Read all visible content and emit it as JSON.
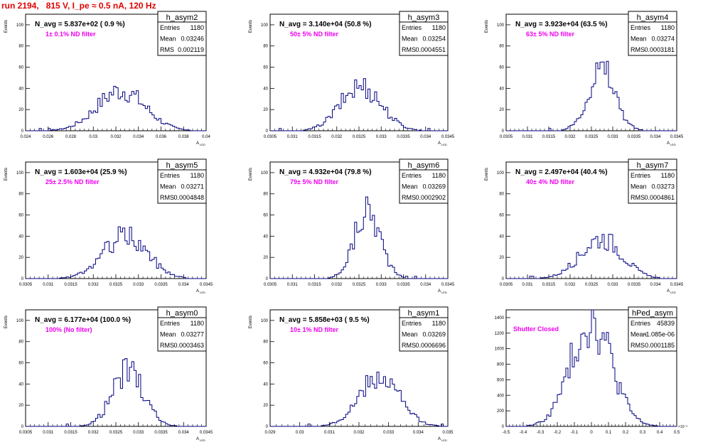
{
  "header": {
    "run_title": "run 2194,   815 V, I_pe ≈ 0.5 nA, 120 Hz"
  },
  "chart_data": [
    {
      "type": "bar",
      "name": "h_asym2",
      "nAvg": "N_avg = 5.837e+02 ( 0.9 %)",
      "filter": "1± 0.1% ND filter",
      "stats": [
        [
          "Entries",
          "1180"
        ],
        [
          "Mean",
          "0.03246"
        ],
        [
          "RMS",
          "0.002119"
        ]
      ],
      "xlabel": "A",
      "xlabel_sub": "LED",
      "ylabel": "Events",
      "xlim": [
        0.024,
        0.04
      ],
      "ylim": [
        0,
        110
      ],
      "xticks": [
        0.024,
        0.026,
        0.028,
        0.03,
        0.032,
        0.034,
        0.036,
        0.038,
        0.04
      ],
      "xtick_labels": [
        "0.024",
        "0.026",
        "0.028",
        "0.03",
        "0.032",
        "0.034",
        "0.036",
        "0.038",
        "0.04"
      ],
      "yticks": [
        0,
        20,
        40,
        60,
        80,
        100
      ],
      "ytick_labels": [
        "0",
        "20",
        "40",
        "60",
        "80",
        "100"
      ],
      "mean": 0.03246,
      "rms": 0.002119,
      "peak": 38
    },
    {
      "type": "bar",
      "name": "h_asym3",
      "nAvg": "N_avg = 3.140e+04 (50.8 %)",
      "filter": "50± 5% ND filter",
      "stats": [
        [
          "Entries",
          "1180"
        ],
        [
          "Mean",
          "0.03254"
        ],
        [
          "RMS",
          "0.0004551"
        ]
      ],
      "xlabel": "A",
      "xlabel_sub": "LED",
      "ylabel": "Events",
      "xlim": [
        0.0305,
        0.0345
      ],
      "ylim": [
        0,
        110
      ],
      "xticks": [
        0.0305,
        0.031,
        0.0315,
        0.032,
        0.0325,
        0.033,
        0.0335,
        0.034,
        0.0345
      ],
      "xtick_labels": [
        "0.0305",
        "0.031",
        "0.0315",
        "0.032",
        "0.0325",
        "0.033",
        "0.0335",
        "0.034",
        "0.0345"
      ],
      "yticks": [
        0,
        20,
        40,
        60,
        80,
        100
      ],
      "ytick_labels": [
        "0",
        "20",
        "40",
        "60",
        "80",
        "100"
      ],
      "mean": 0.03254,
      "rms": 0.0004551,
      "peak": 42
    },
    {
      "type": "bar",
      "name": "h_asym4",
      "nAvg": "N_avg = 3.923e+04 (63.5 %)",
      "filter": "63± 5% ND filter",
      "stats": [
        [
          "Entries",
          "1180"
        ],
        [
          "Mean",
          "0.03274"
        ],
        [
          "RMS",
          "0.0003181"
        ]
      ],
      "xlabel": "A",
      "xlabel_sub": "LED",
      "ylabel": "Events",
      "xlim": [
        0.0305,
        0.0345
      ],
      "ylim": [
        0,
        110
      ],
      "xticks": [
        0.0305,
        0.031,
        0.0315,
        0.032,
        0.0325,
        0.033,
        0.0335,
        0.034,
        0.0345
      ],
      "xtick_labels": [
        "0.0305",
        "0.031",
        "0.0315",
        "0.032",
        "0.0325",
        "0.033",
        "0.0335",
        "0.034",
        "0.0345"
      ],
      "yticks": [
        0,
        20,
        40,
        60,
        80,
        100
      ],
      "ytick_labels": [
        "0",
        "20",
        "40",
        "60",
        "80",
        "100"
      ],
      "mean": 0.03274,
      "rms": 0.0003181,
      "peak": 58
    },
    {
      "type": "bar",
      "name": "h_asym5",
      "nAvg": "N_avg = 1.603e+04 (25.9 %)",
      "filter": "25± 2.5% ND filter",
      "stats": [
        [
          "Entries",
          "1180"
        ],
        [
          "Mean",
          "0.03271"
        ],
        [
          "RMS",
          "0.0004848"
        ]
      ],
      "xlabel": "A",
      "xlabel_sub": "LED",
      "ylabel": "Events",
      "xlim": [
        0.0305,
        0.0345
      ],
      "ylim": [
        0,
        110
      ],
      "xticks": [
        0.0305,
        0.031,
        0.0315,
        0.032,
        0.0325,
        0.033,
        0.0335,
        0.034,
        0.0345
      ],
      "xtick_labels": [
        "0.0305",
        "0.031",
        "0.0315",
        "0.032",
        "0.0325",
        "0.033",
        "0.0335",
        "0.034",
        "0.0345"
      ],
      "yticks": [
        0,
        20,
        40,
        60,
        80,
        100
      ],
      "ytick_labels": [
        "0",
        "20",
        "40",
        "60",
        "80",
        "100"
      ],
      "mean": 0.03271,
      "rms": 0.0004848,
      "peak": 40
    },
    {
      "type": "bar",
      "name": "h_asym6",
      "nAvg": "N_avg = 4.932e+04 (79.8 %)",
      "filter": "79± 5% ND filter",
      "stats": [
        [
          "Entries",
          "1180"
        ],
        [
          "Mean",
          "0.03269"
        ],
        [
          "RMS",
          "0.0002902"
        ]
      ],
      "xlabel": "A",
      "xlabel_sub": "LED",
      "ylabel": "Events",
      "xlim": [
        0.0305,
        0.0345
      ],
      "ylim": [
        0,
        110
      ],
      "xticks": [
        0.0305,
        0.031,
        0.0315,
        0.032,
        0.0325,
        0.033,
        0.0335,
        0.034,
        0.0345
      ],
      "xtick_labels": [
        "0.0305",
        "0.031",
        "0.0315",
        "0.032",
        "0.0325",
        "0.033",
        "0.0335",
        "0.034",
        "0.0345"
      ],
      "yticks": [
        0,
        20,
        40,
        60,
        80,
        100
      ],
      "ytick_labels": [
        "0",
        "20",
        "40",
        "60",
        "80",
        "100"
      ],
      "mean": 0.03269,
      "rms": 0.0002902,
      "peak": 64
    },
    {
      "type": "bar",
      "name": "h_asym7",
      "nAvg": "N_avg = 2.497e+04 (40.4 %)",
      "filter": "40± 4% ND filter",
      "stats": [
        [
          "Entries",
          "1180"
        ],
        [
          "Mean",
          "0.03273"
        ],
        [
          "RMS",
          "0.0004861"
        ]
      ],
      "xlabel": "A",
      "xlabel_sub": "LED",
      "ylabel": "Events",
      "xlim": [
        0.0305,
        0.0345
      ],
      "ylim": [
        0,
        110
      ],
      "xticks": [
        0.0305,
        0.031,
        0.0315,
        0.032,
        0.0325,
        0.033,
        0.0335,
        0.034,
        0.0345
      ],
      "xtick_labels": [
        "0.0305",
        "0.031",
        "0.0315",
        "0.032",
        "0.0325",
        "0.033",
        "0.0335",
        "0.034",
        "0.0345"
      ],
      "yticks": [
        0,
        20,
        40,
        60,
        80,
        100
      ],
      "ytick_labels": [
        "0",
        "20",
        "40",
        "60",
        "80",
        "100"
      ],
      "mean": 0.03273,
      "rms": 0.0004861,
      "peak": 38
    },
    {
      "type": "bar",
      "name": "h_asym0",
      "nAvg": "N_avg = 6.177e+04 (100.0 %)",
      "filter": "100% (No filter)",
      "stats": [
        [
          "Entries",
          "1180"
        ],
        [
          "Mean",
          "0.03277"
        ],
        [
          "RMS",
          "0.0003463"
        ]
      ],
      "xlabel": "A",
      "xlabel_sub": "LED",
      "ylabel": "Events",
      "xlim": [
        0.0305,
        0.0345
      ],
      "ylim": [
        0,
        110
      ],
      "xticks": [
        0.0305,
        0.031,
        0.0315,
        0.032,
        0.0325,
        0.033,
        0.0335,
        0.034,
        0.0345
      ],
      "xtick_labels": [
        "0.0305",
        "0.031",
        "0.0315",
        "0.032",
        "0.0325",
        "0.033",
        "0.0335",
        "0.034",
        "0.0345"
      ],
      "yticks": [
        0,
        20,
        40,
        60,
        80,
        100
      ],
      "ytick_labels": [
        "0",
        "20",
        "40",
        "60",
        "80",
        "100"
      ],
      "mean": 0.03277,
      "rms": 0.0003463,
      "peak": 52
    },
    {
      "type": "bar",
      "name": "h_asym1",
      "nAvg": "N_avg = 5.858e+03 ( 9.5 %)",
      "filter": "10± 1% ND filter",
      "stats": [
        [
          "Entries",
          "1180"
        ],
        [
          "Mean",
          "0.03269"
        ],
        [
          "RMS",
          "0.0006696"
        ]
      ],
      "xlabel": "A",
      "xlabel_sub": "LED",
      "ylabel": "Events",
      "xlim": [
        0.029,
        0.035
      ],
      "ylim": [
        0,
        110
      ],
      "xticks": [
        0.029,
        0.03,
        0.031,
        0.032,
        0.033,
        0.034,
        0.035
      ],
      "xtick_labels": [
        "0.029",
        "0.03",
        "0.031",
        "0.032",
        "0.033",
        "0.034",
        "0.035"
      ],
      "yticks": [
        0,
        20,
        40,
        60,
        80,
        100
      ],
      "ytick_labels": [
        "0",
        "20",
        "40",
        "60",
        "80",
        "100"
      ],
      "mean": 0.03269,
      "rms": 0.0006696,
      "peak": 46
    },
    {
      "type": "bar",
      "name": "hPed_asym",
      "nAvg": "",
      "filter": "Shutter Closed",
      "stats": [
        [
          "Entries",
          "45839"
        ],
        [
          "Mean",
          "-1.085e-06"
        ],
        [
          "RMS",
          "0.0001185"
        ]
      ],
      "xlabel": "",
      "xlabel_sub": "",
      "ylabel": "",
      "xlim": [
        -0.5,
        0.5
      ],
      "ylim": [
        0,
        1500
      ],
      "xticks": [
        -0.5,
        -0.4,
        -0.3,
        -0.2,
        -0.1,
        0,
        0.1,
        0.2,
        0.3,
        0.4,
        0.5
      ],
      "xtick_labels": [
        "-0.5",
        "-0.4",
        "-0.3",
        "-0.2",
        "-0.1",
        "0",
        "0.1",
        "0.2",
        "0.3",
        "0.4",
        "0.5"
      ],
      "x_exponent": "×10⁻³",
      "yticks": [
        0,
        200,
        400,
        600,
        800,
        1000,
        1200,
        1400
      ],
      "ytick_labels": [
        "0",
        "200",
        "400",
        "600",
        "800",
        "1000",
        "1200",
        "1400"
      ],
      "mean": -0.001,
      "rms": 0.1185,
      "peak": 1380
    }
  ]
}
